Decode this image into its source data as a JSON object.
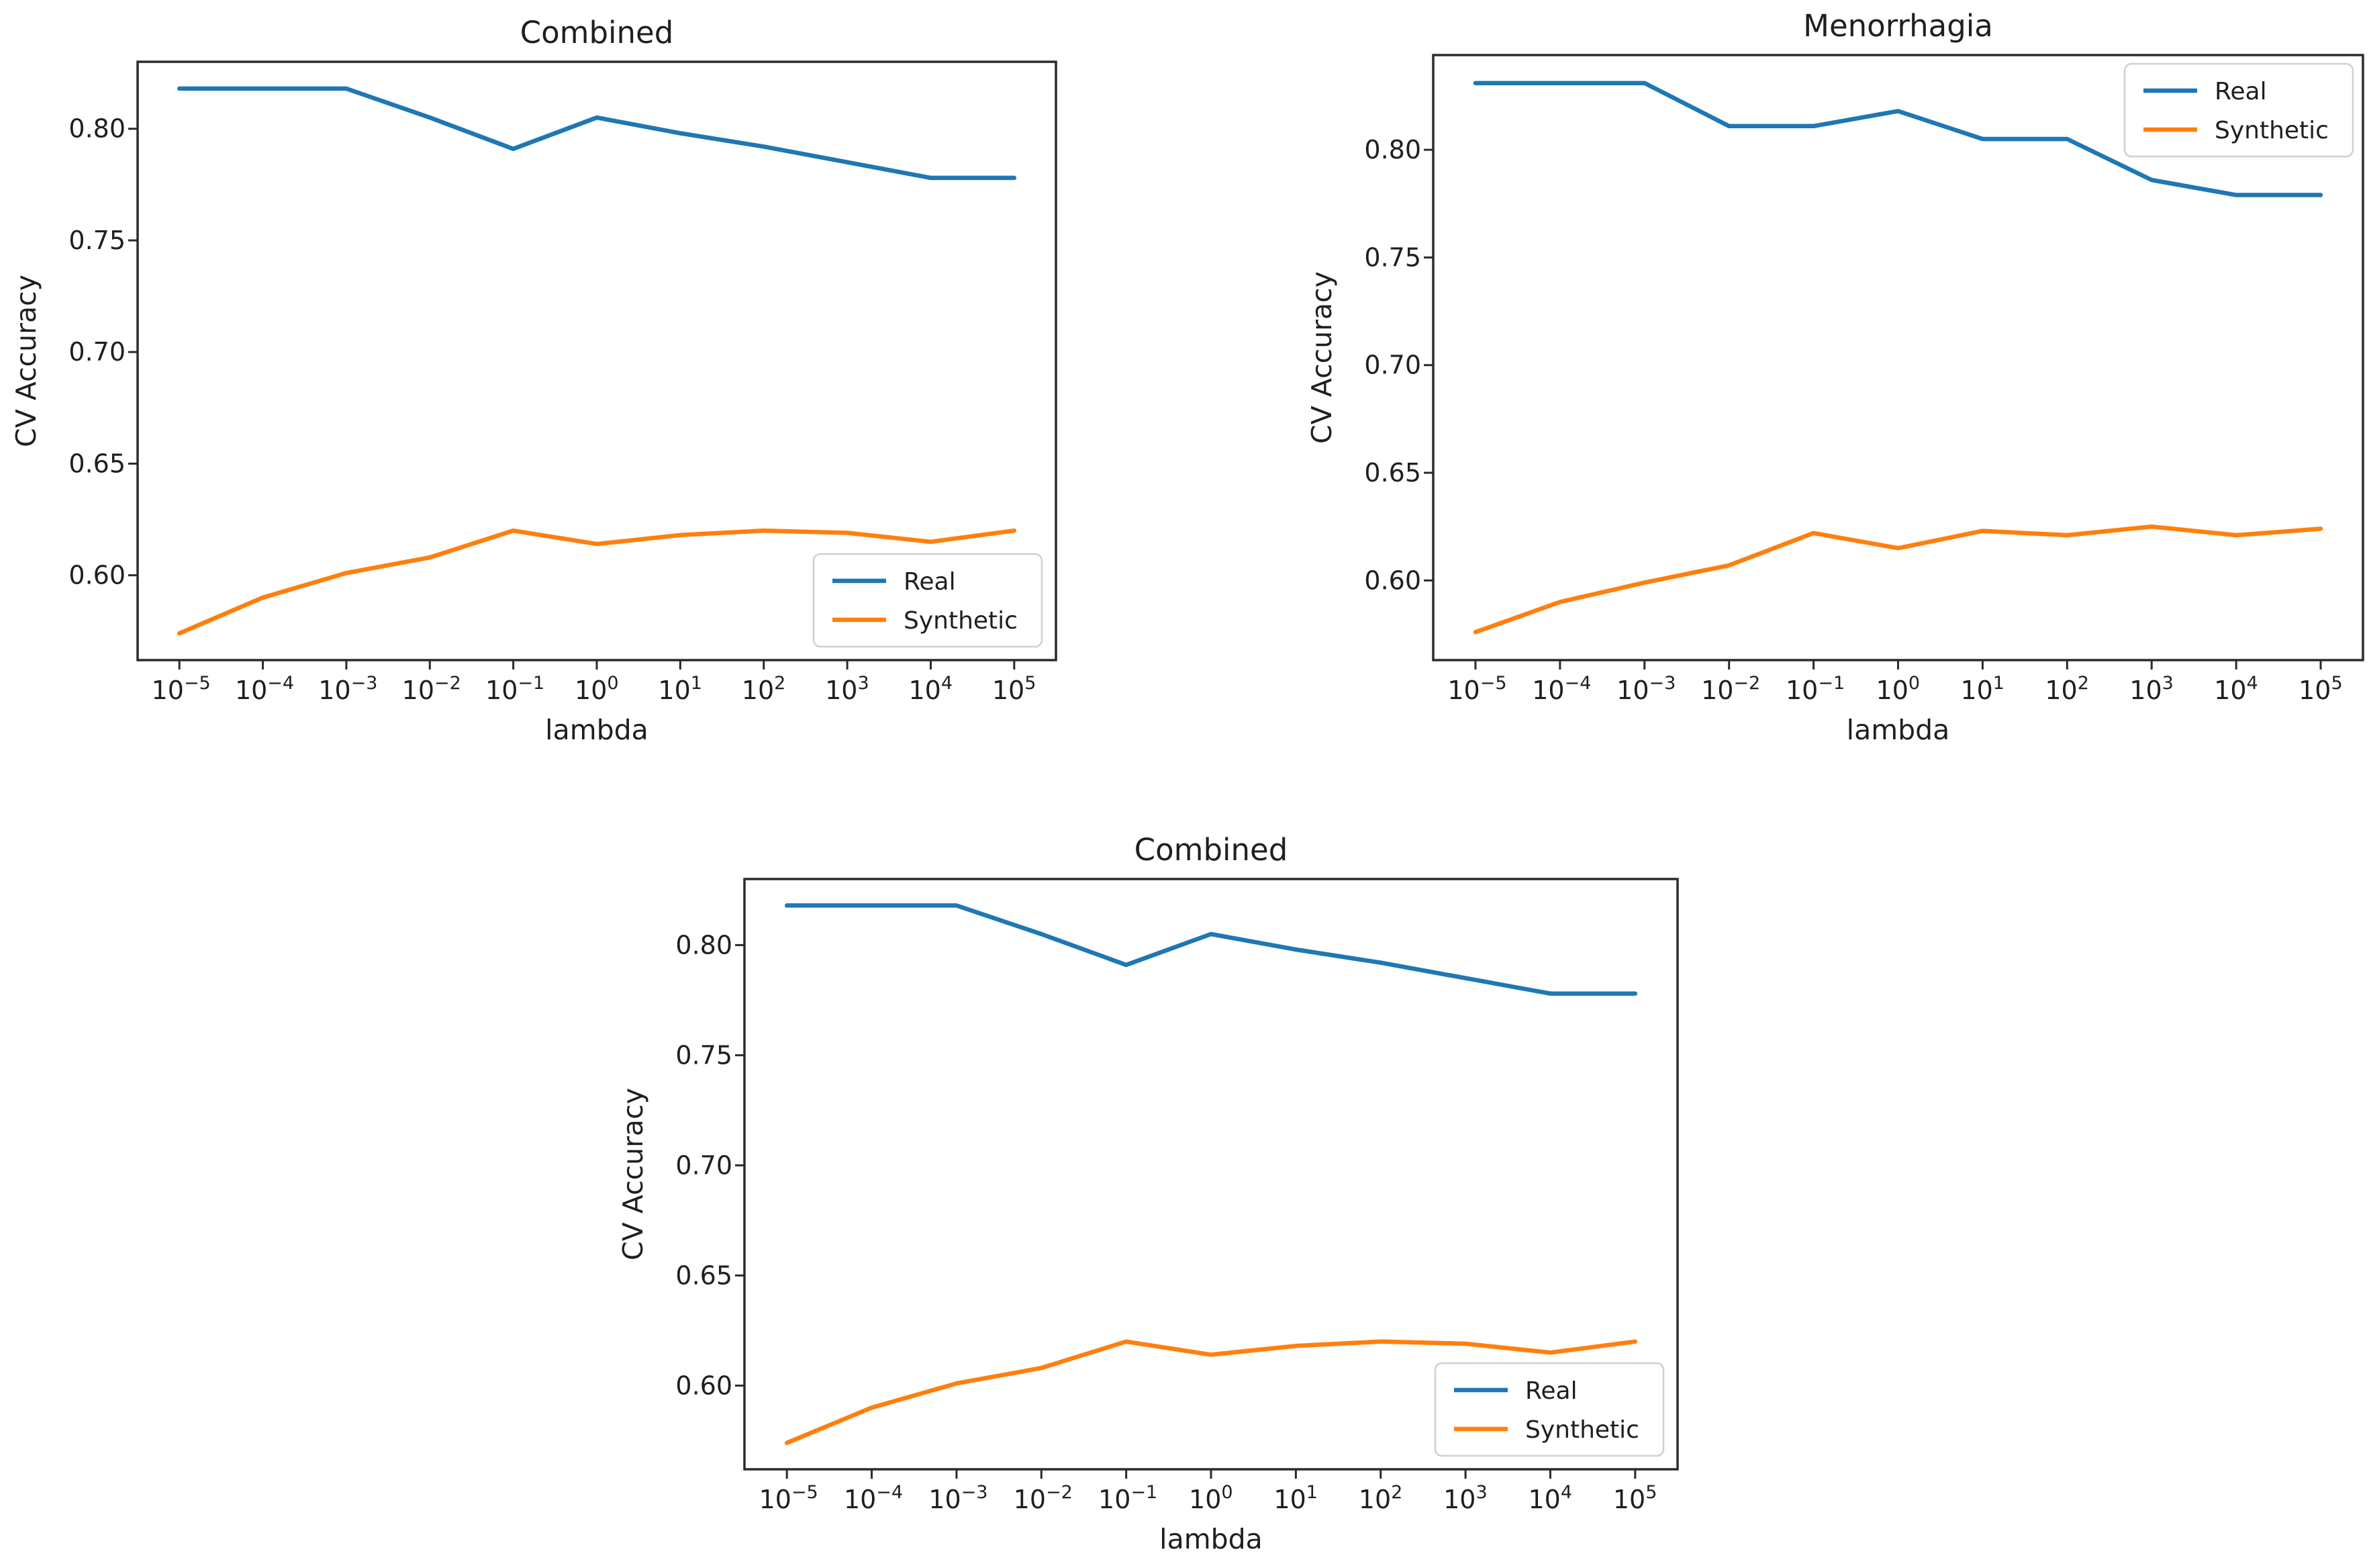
{
  "figure": {
    "background": "#ffffff",
    "text_color": "#1f1f1f",
    "axis_color": "#2b2b2b",
    "legend_border_color": "#d0d0d0",
    "legend_fill": "#ffffff"
  },
  "series_colors": {
    "Real": "#1f77b4",
    "Synthetic": "#ff7f0e"
  },
  "chart_data": [
    {
      "type": "line",
      "title": "Combined",
      "xlabel": "lambda",
      "ylabel": "CV Accuracy",
      "x_scale": "log10",
      "x_tick_exponents": [
        -5,
        -4,
        -3,
        -2,
        -1,
        0,
        1,
        2,
        3,
        4,
        5
      ],
      "y_ticks": [
        0.6,
        0.65,
        0.7,
        0.75,
        0.8
      ],
      "ylim": [
        0.562,
        0.83
      ],
      "grid": false,
      "legend_position": "lower right",
      "series": [
        {
          "name": "Real",
          "color_key": "Real",
          "values": [
            0.818,
            0.818,
            0.818,
            0.805,
            0.791,
            0.805,
            0.798,
            0.792,
            0.785,
            0.778,
            0.778
          ]
        },
        {
          "name": "Synthetic",
          "color_key": "Synthetic",
          "values": [
            0.574,
            0.59,
            0.601,
            0.608,
            0.62,
            0.614,
            0.618,
            0.62,
            0.619,
            0.615,
            0.62
          ]
        }
      ]
    },
    {
      "type": "line",
      "title": "Menorrhagia",
      "xlabel": "lambda",
      "ylabel": "CV Accuracy",
      "x_scale": "log10",
      "x_tick_exponents": [
        -5,
        -4,
        -3,
        -2,
        -1,
        0,
        1,
        2,
        3,
        4,
        5
      ],
      "y_ticks": [
        0.6,
        0.65,
        0.7,
        0.75,
        0.8
      ],
      "ylim": [
        0.563,
        0.844
      ],
      "grid": false,
      "legend_position": "upper right",
      "series": [
        {
          "name": "Real",
          "color_key": "Real",
          "values": [
            0.831,
            0.831,
            0.831,
            0.811,
            0.811,
            0.818,
            0.805,
            0.805,
            0.786,
            0.779,
            0.779
          ]
        },
        {
          "name": "Synthetic",
          "color_key": "Synthetic",
          "values": [
            0.576,
            0.59,
            0.599,
            0.607,
            0.622,
            0.615,
            0.623,
            0.621,
            0.625,
            0.621,
            0.624
          ]
        }
      ]
    },
    {
      "type": "line",
      "title": "Combined",
      "xlabel": "lambda",
      "ylabel": "CV Accuracy",
      "x_scale": "log10",
      "x_tick_exponents": [
        -5,
        -4,
        -3,
        -2,
        -1,
        0,
        1,
        2,
        3,
        4,
        5
      ],
      "y_ticks": [
        0.6,
        0.65,
        0.7,
        0.75,
        0.8
      ],
      "ylim": [
        0.562,
        0.83
      ],
      "grid": false,
      "legend_position": "lower right",
      "series": [
        {
          "name": "Real",
          "color_key": "Real",
          "values": [
            0.818,
            0.818,
            0.818,
            0.805,
            0.791,
            0.805,
            0.798,
            0.792,
            0.785,
            0.778,
            0.778
          ]
        },
        {
          "name": "Synthetic",
          "color_key": "Synthetic",
          "values": [
            0.574,
            0.59,
            0.601,
            0.608,
            0.62,
            0.614,
            0.618,
            0.62,
            0.619,
            0.615,
            0.62
          ]
        }
      ]
    }
  ]
}
